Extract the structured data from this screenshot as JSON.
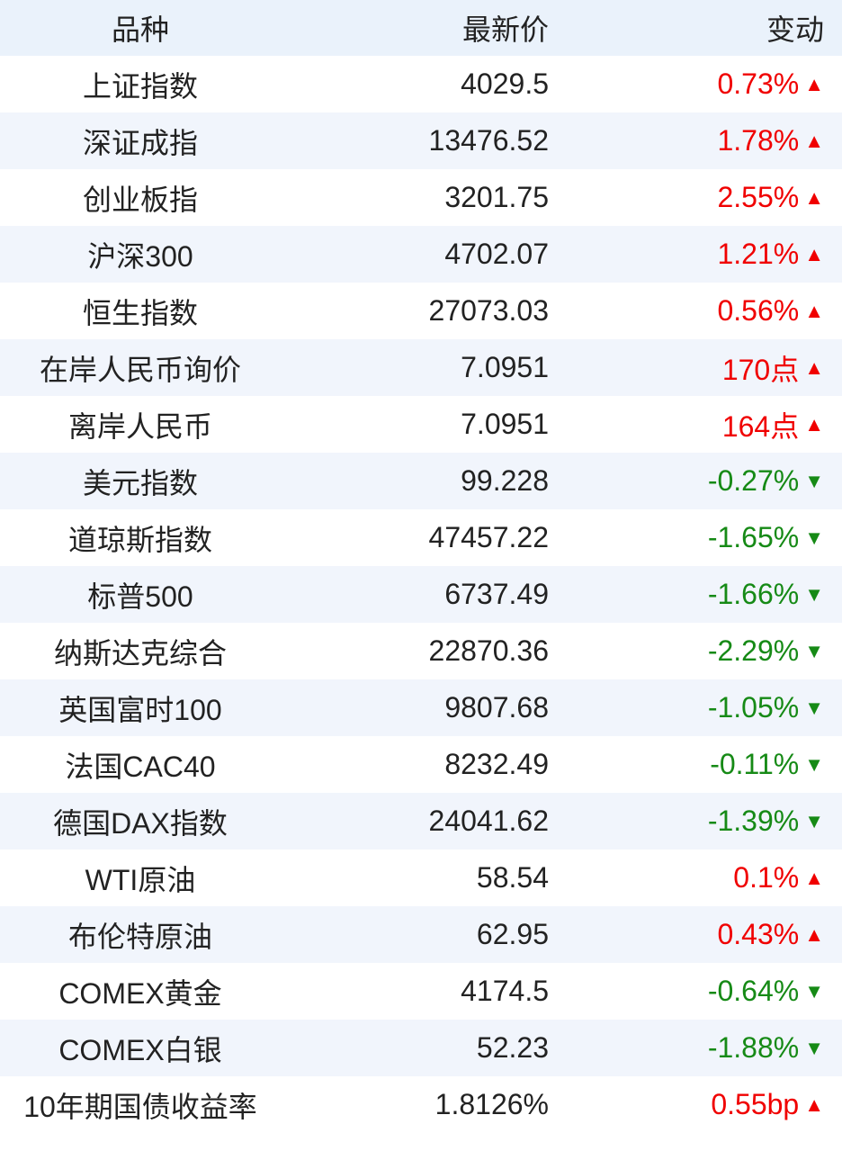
{
  "header": {
    "name": "品种",
    "price": "最新价",
    "change": "变动"
  },
  "colors": {
    "up": "#f00000",
    "down": "#168a16",
    "header_bg": "#eaf2fb",
    "alt_bg": "#f1f5fc"
  },
  "rows": [
    {
      "name": "上证指数",
      "price": "4029.5",
      "change": "0.73%",
      "dir": "up"
    },
    {
      "name": "深证成指",
      "price": "13476.52",
      "change": "1.78%",
      "dir": "up"
    },
    {
      "name": "创业板指",
      "price": "3201.75",
      "change": "2.55%",
      "dir": "up"
    },
    {
      "name": "沪深300",
      "price": "4702.07",
      "change": "1.21%",
      "dir": "up"
    },
    {
      "name": "恒生指数",
      "price": "27073.03",
      "change": "0.56%",
      "dir": "up"
    },
    {
      "name": "在岸人民币询价",
      "price": "7.0951",
      "change": "170点",
      "dir": "up"
    },
    {
      "name": "离岸人民币",
      "price": "7.0951",
      "change": "164点",
      "dir": "up"
    },
    {
      "name": "美元指数",
      "price": "99.228",
      "change": "-0.27%",
      "dir": "down"
    },
    {
      "name": "道琼斯指数",
      "price": "47457.22",
      "change": "-1.65%",
      "dir": "down"
    },
    {
      "name": "标普500",
      "price": "6737.49",
      "change": "-1.66%",
      "dir": "down"
    },
    {
      "name": "纳斯达克综合",
      "price": "22870.36",
      "change": "-2.29%",
      "dir": "down"
    },
    {
      "name": "英国富时100",
      "price": "9807.68",
      "change": "-1.05%",
      "dir": "down"
    },
    {
      "name": "法国CAC40",
      "price": "8232.49",
      "change": "-0.11%",
      "dir": "down"
    },
    {
      "name": "德国DAX指数",
      "price": "24041.62",
      "change": "-1.39%",
      "dir": "down"
    },
    {
      "name": "WTI原油",
      "price": "58.54",
      "change": "0.1%",
      "dir": "up"
    },
    {
      "name": "布伦特原油",
      "price": "62.95",
      "change": "0.43%",
      "dir": "up"
    },
    {
      "name": "COMEX黄金",
      "price": "4174.5",
      "change": "-0.64%",
      "dir": "down"
    },
    {
      "name": "COMEX白银",
      "price": "52.23",
      "change": "-1.88%",
      "dir": "down"
    },
    {
      "name": "10年期国债收益率",
      "price": "1.8126%",
      "change": "0.55bp",
      "dir": "up"
    }
  ]
}
